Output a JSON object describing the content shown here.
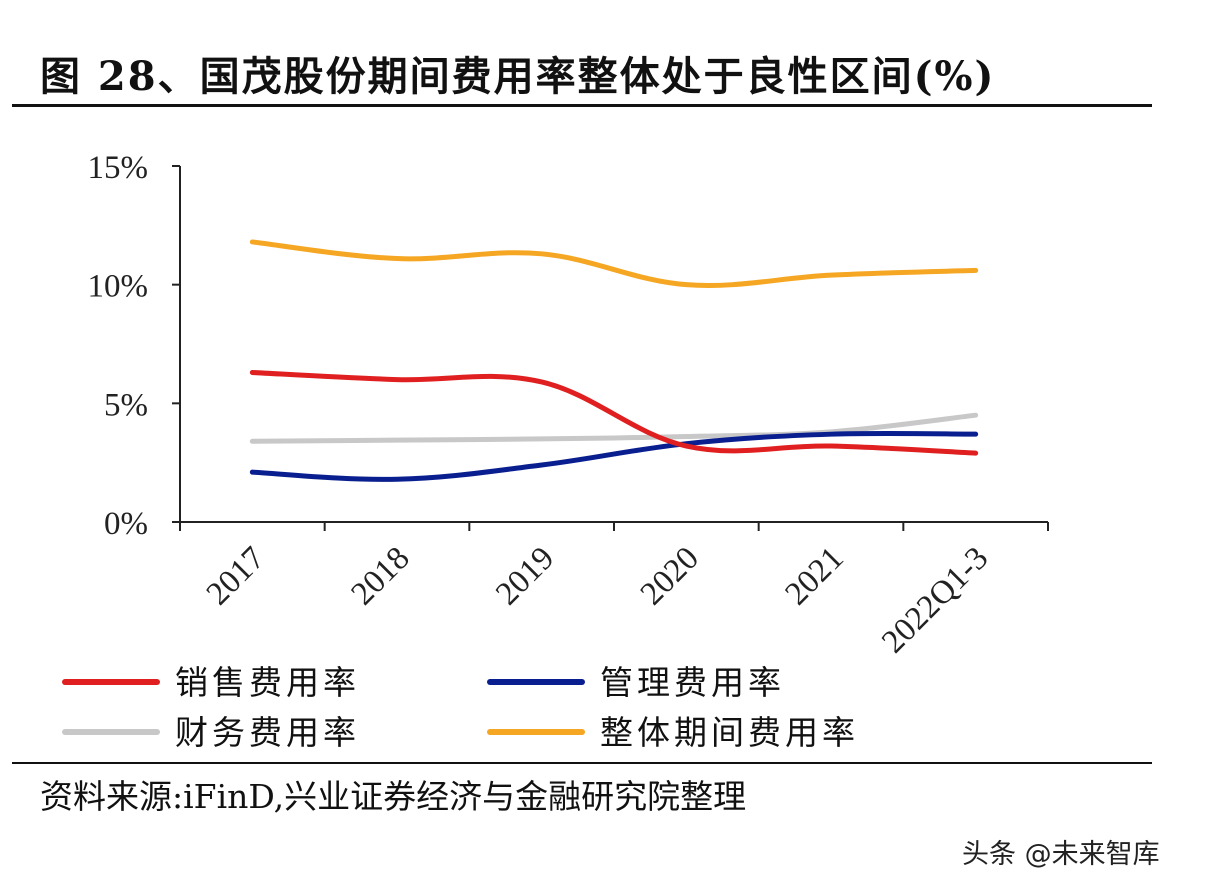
{
  "title": "图 28、国茂股份期间费用率整体处于良性区间(%)",
  "source": "资料来源:iFinD,兴业证券经济与金融研究院整理",
  "watermark": "头条 @未来智库",
  "chart_data": {
    "type": "line",
    "categories": [
      "2017",
      "2018",
      "2019",
      "2020",
      "2021",
      "2022Q1-3"
    ],
    "yticks": [
      "0%",
      "5%",
      "10%",
      "15%"
    ],
    "ylim": [
      0,
      15
    ],
    "series": [
      {
        "name": "销售费用率",
        "color": "#e02020",
        "values": [
          6.3,
          6.0,
          5.9,
          3.2,
          3.2,
          2.9
        ]
      },
      {
        "name": "管理费用率",
        "color": "#0a1f8f",
        "values": [
          2.1,
          1.8,
          2.4,
          3.3,
          3.7,
          3.7
        ]
      },
      {
        "name": "财务费用率",
        "color": "#c8c8c8",
        "values": [
          3.4,
          3.45,
          3.5,
          3.6,
          3.8,
          4.5
        ]
      },
      {
        "name": "整体期间费用率",
        "color": "#f5a623",
        "values": [
          11.8,
          11.1,
          11.3,
          10.0,
          10.4,
          10.6
        ]
      }
    ],
    "legend_position": "bottom",
    "grid": false
  }
}
